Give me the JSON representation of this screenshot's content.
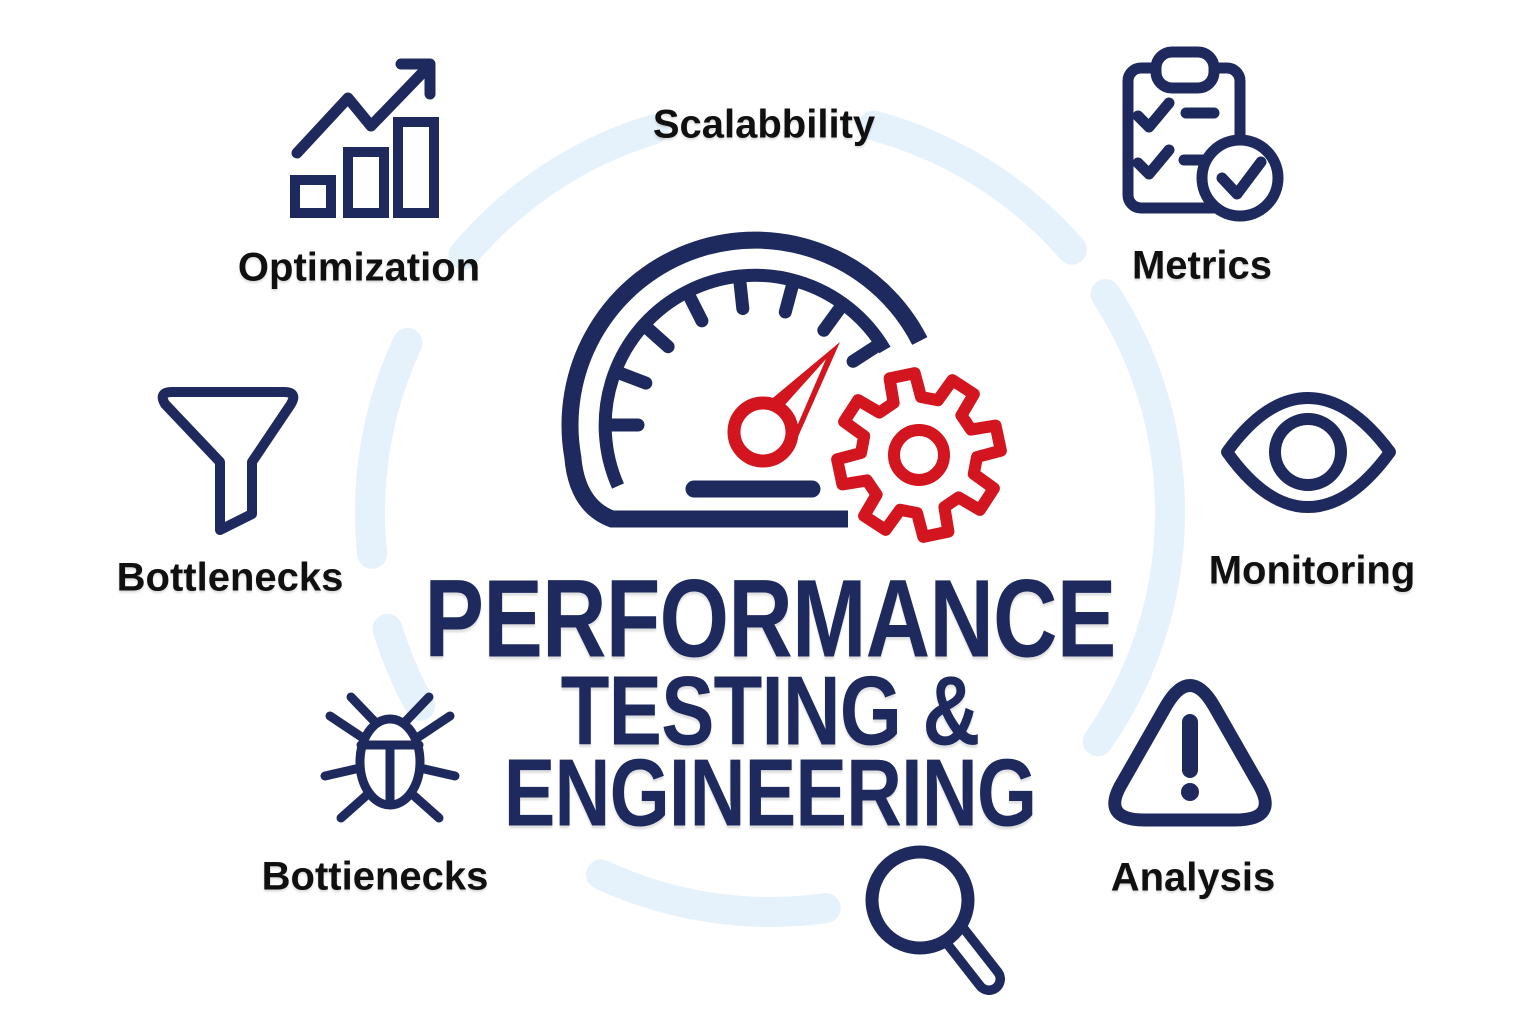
{
  "diagram_title": {
    "line1": "PERFORMANCE",
    "line2": "TESTING &",
    "line3": "ENGINEERING"
  },
  "center_icon": "speedometer-with-gear",
  "nodes": [
    {
      "id": "optimization",
      "label": "Optimization",
      "icon": "growth-chart-icon"
    },
    {
      "id": "scalability",
      "label": "Scalabbility",
      "icon": "none"
    },
    {
      "id": "metrics",
      "label": "Metrics",
      "icon": "clipboard-checklist-icon"
    },
    {
      "id": "bottlenecks",
      "label": "Bottlenecks",
      "icon": "funnel-icon"
    },
    {
      "id": "monitoring",
      "label": "Monitoring",
      "icon": "eye-icon"
    },
    {
      "id": "bottienecks",
      "label": "Bottienecks",
      "icon": "bug-icon"
    },
    {
      "id": "analysis",
      "label": "Analysis",
      "icon": "warning-triangle-icon"
    },
    {
      "id": "search",
      "label": "",
      "icon": "magnifier-icon"
    }
  ],
  "palette": {
    "navy": "#1e2a5e",
    "red": "#d2151e",
    "pale_blue": "#e6f2fb",
    "label_black": "#101010"
  }
}
